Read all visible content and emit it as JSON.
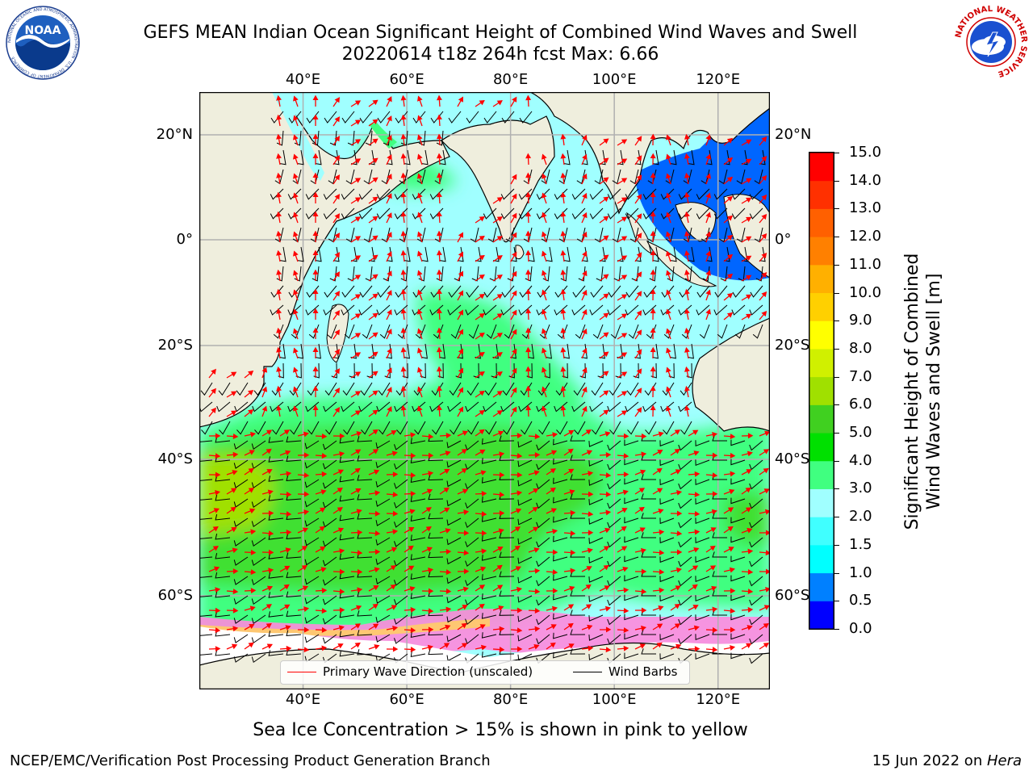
{
  "header": {
    "title_line1": "GEFS MEAN Indian Ocean Significant Height of Combined Wind Waves and Swell",
    "title_line2": "20220614 t18z 264h fcst    Max: 6.66"
  },
  "logos": {
    "left_name": "NOAA",
    "left_ring_text": "NATIONAL OCEANIC AND ATMOSPHERIC ADMINISTRATION · U.S. DEPARTMENT OF COMMERCE",
    "right_ring_text": "NATIONAL WEATHER SERVICE"
  },
  "map": {
    "lon_ticks": [
      "40°E",
      "60°E",
      "80°E",
      "100°E",
      "120°E"
    ],
    "lon_values": [
      40,
      60,
      80,
      100,
      120
    ],
    "lat_ticks": [
      "20°N",
      "0°",
      "20°S",
      "40°S",
      "60°S"
    ],
    "lat_values": [
      20,
      0,
      -20,
      -40,
      -60
    ],
    "lon_range": [
      20,
      130
    ],
    "lat_range": [
      -72,
      28
    ],
    "grid": true,
    "land_color": "#efeedd",
    "arrow_color": "#ff0000",
    "barb_color": "#000000"
  },
  "colorbar": {
    "label_line1": "Significant Height of Combined",
    "label_line2": "Wind Waves and Swell [m]",
    "ticks": [
      "0.0",
      "0.5",
      "1.0",
      "1.5",
      "2.0",
      "3.0",
      "4.0",
      "5.0",
      "6.0",
      "7.0",
      "8.0",
      "9.0",
      "10.0",
      "11.0",
      "12.0",
      "13.0",
      "14.0",
      "15.0"
    ],
    "colors": [
      "#0000ff",
      "#0080ff",
      "#00ffff",
      "#40ffff",
      "#a0ffff",
      "#40ff80",
      "#00e000",
      "#40d020",
      "#a0e000",
      "#d0f000",
      "#ffff00",
      "#ffd000",
      "#ffb000",
      "#ff8000",
      "#ff6000",
      "#ff3000",
      "#ff0000"
    ]
  },
  "legend": {
    "wave_label": "Primary Wave Direction (unscaled)",
    "barb_label": "Wind Barbs",
    "wave_color": "#ff0000",
    "barb_color": "#000000"
  },
  "caption": "Sea Ice Concentration > 15% is shown in pink to yellow",
  "footer": {
    "left": "NCEP/EMC/Verification Post Processing Product Generation Branch",
    "date": "15 Jun 2022 on ",
    "host": "Hera"
  }
}
